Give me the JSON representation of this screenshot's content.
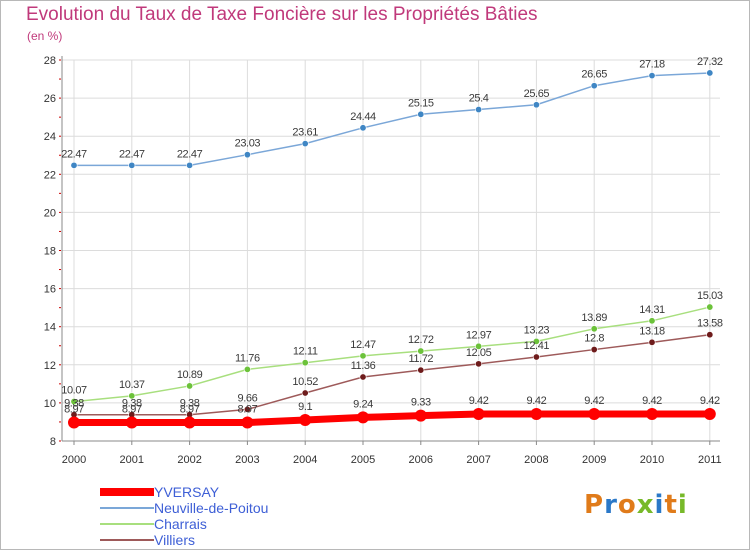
{
  "title": "Evolution du Taux de Taxe Foncière sur les Propriétés Bâties",
  "unit": "(en %)",
  "logo_text": "Proxiti",
  "colors": {
    "title": "#c0397b",
    "axis": "#888888",
    "grid": "#dcdcdc",
    "tick_marks": "#cc0000",
    "legend_text": "#3e5fd6",
    "logo": [
      "#e07b1a",
      "#2a78c8",
      "#e07b1a",
      "#77b929",
      "#2a78c8",
      "#e07b1a",
      "#77b929"
    ]
  },
  "chart_data": {
    "type": "line",
    "title": "Evolution du Taux de Taxe Foncière sur les Propriétés Bâties",
    "ylabel": "(en %)",
    "xlabel": "",
    "x": [
      2000,
      2001,
      2002,
      2003,
      2004,
      2005,
      2006,
      2007,
      2008,
      2009,
      2010,
      2011
    ],
    "ylim": [
      8,
      28
    ],
    "yticks": [
      8,
      10,
      12,
      14,
      16,
      18,
      20,
      22,
      24,
      26,
      28
    ],
    "grid": true,
    "legend_position": "bottom-left",
    "series": [
      {
        "name": "YVERSAY",
        "color": "#ff0000",
        "thick": true,
        "values": [
          8.97,
          8.97,
          8.97,
          8.97,
          9.1,
          9.24,
          9.33,
          9.42,
          9.42,
          9.42,
          9.42,
          9.42
        ],
        "labels": [
          "8.97",
          "8.97",
          "8.97",
          "8.97",
          "9.1",
          "9.24",
          "9.33",
          "9.42",
          "9.42",
          "9.42",
          "9.42",
          "9.42"
        ]
      },
      {
        "name": "Neuville-de-Poitou",
        "color": "#7ba7d8",
        "marker": "#3f86c4",
        "values": [
          22.47,
          22.47,
          22.47,
          23.03,
          23.61,
          24.44,
          25.15,
          25.4,
          25.65,
          26.65,
          27.18,
          27.32
        ],
        "labels": [
          "22.47",
          "22.47",
          "22.47",
          "23.03",
          "23.61",
          "24.44",
          "25.15",
          "25.4",
          "25.65",
          "26.65",
          "27.18",
          "27.32"
        ]
      },
      {
        "name": "Charrais",
        "color": "#a8df7e",
        "marker": "#6cc23a",
        "values": [
          10.07,
          10.37,
          10.89,
          11.76,
          12.11,
          12.47,
          12.72,
          12.97,
          13.23,
          13.89,
          14.31,
          15.03
        ],
        "labels": [
          "10.07",
          "10.37",
          "10.89",
          "11.76",
          "12.11",
          "12.47",
          "12.72",
          "12.97",
          "13.23",
          "13.89",
          "14.31",
          "15.03"
        ]
      },
      {
        "name": "Villiers",
        "color": "#9e5a5a",
        "marker": "#6e1b1b",
        "values": [
          9.38,
          9.38,
          9.38,
          9.66,
          10.52,
          11.36,
          11.72,
          12.05,
          12.41,
          12.8,
          13.18,
          13.58
        ],
        "labels": [
          "9.38",
          "9.38",
          "9.38",
          "9.66",
          "10.52",
          "11.36",
          "11.72",
          "12.05",
          "12.41",
          "12.8",
          "13.18",
          "13.58"
        ]
      }
    ]
  }
}
